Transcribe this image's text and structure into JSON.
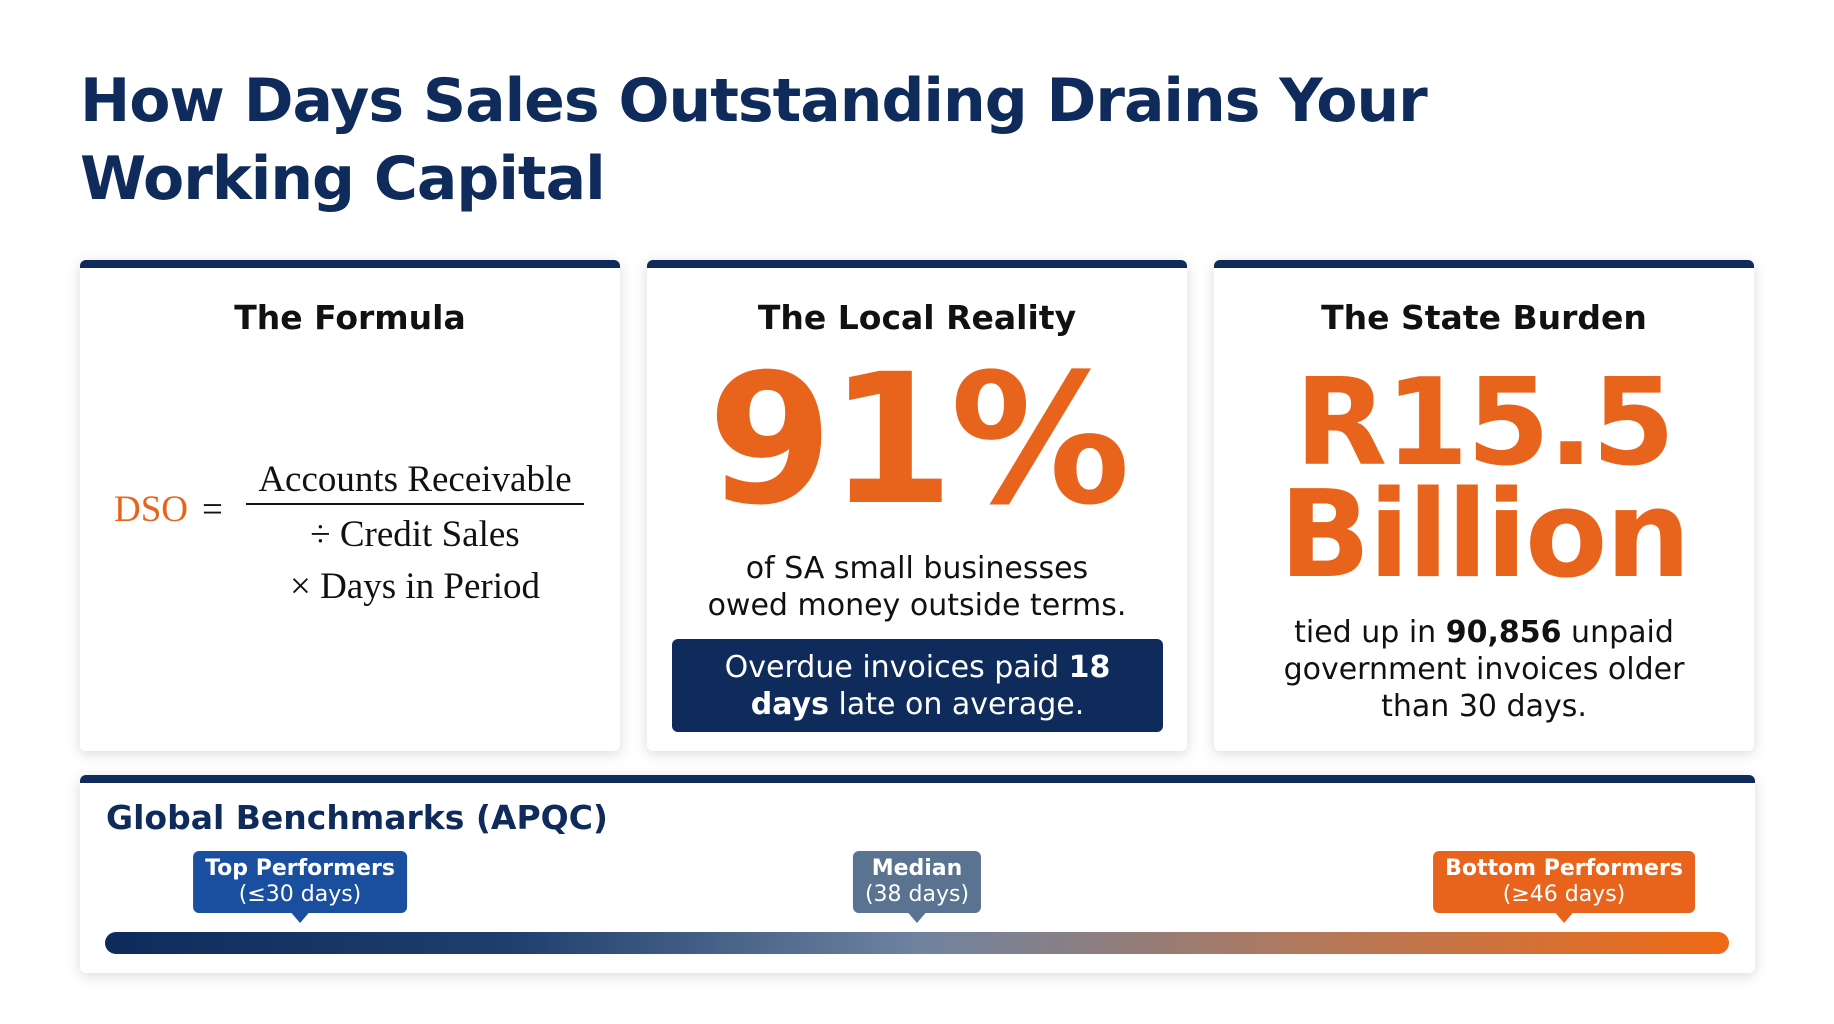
{
  "header": {
    "title": "How Days Sales Outstanding Drains Your Working Capital"
  },
  "cards": [
    {
      "heading": "The Formula",
      "formula": {
        "lhs": "DSO",
        "equals": "=",
        "numerator": "Accounts Receivable",
        "line2": "÷ Credit Sales",
        "line3": "× Days in Period"
      }
    },
    {
      "heading": "The Local Reality",
      "stat": "91%",
      "description": "of SA small businesses owed money outside terms.",
      "callout": {
        "before": "Overdue invoices paid ",
        "bold": "18 days",
        "after": " late on average."
      }
    },
    {
      "heading": "The State Burden",
      "stat": "R15.5 Billion",
      "description": {
        "before": "tied up in ",
        "bold": "90,856",
        "after": " unpaid government invoices older than 30 days."
      }
    }
  ],
  "benchmarks": {
    "title": "Global Benchmarks (APQC)",
    "markers": [
      {
        "label": "Top Performers",
        "detail": "(≤30 days)"
      },
      {
        "label": "Median",
        "detail": "(38 days)"
      },
      {
        "label": "Bottom Performers",
        "detail": "(≥46 days)"
      }
    ]
  }
}
